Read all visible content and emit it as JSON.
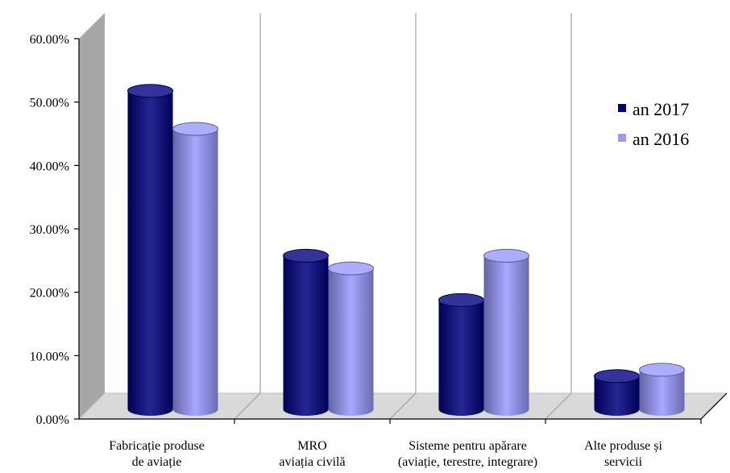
{
  "chart_data": {
    "type": "bar",
    "title": "",
    "xlabel": "",
    "ylabel": "",
    "categories": [
      [
        "Fabricație produse",
        "de aviație"
      ],
      [
        "MRO",
        "aviația civilă"
      ],
      [
        "Sisteme pentru apărare",
        "(aviație, terestre, integrare)"
      ],
      [
        "Alte produse și",
        "servicii"
      ]
    ],
    "series": [
      {
        "name": "an 2017",
        "values": [
          0.51,
          0.25,
          0.18,
          0.06
        ],
        "color": "#000080"
      },
      {
        "name": "an 2016",
        "values": [
          0.45,
          0.23,
          0.25,
          0.07
        ],
        "color": "#9999ff"
      }
    ],
    "ylim": [
      0,
      0.6
    ],
    "yticks": [
      "0.00%",
      "10.00%",
      "20.00%",
      "30.00%",
      "40.00%",
      "50.00%",
      "60.00%"
    ],
    "grid": "vertical category separators",
    "legend": "right",
    "style": "3D cylinder",
    "colors": {
      "wall": "#a6a6a6",
      "floor": "#d9d9d9",
      "gridline": "#a6a6a6",
      "axis": "#000000"
    }
  }
}
